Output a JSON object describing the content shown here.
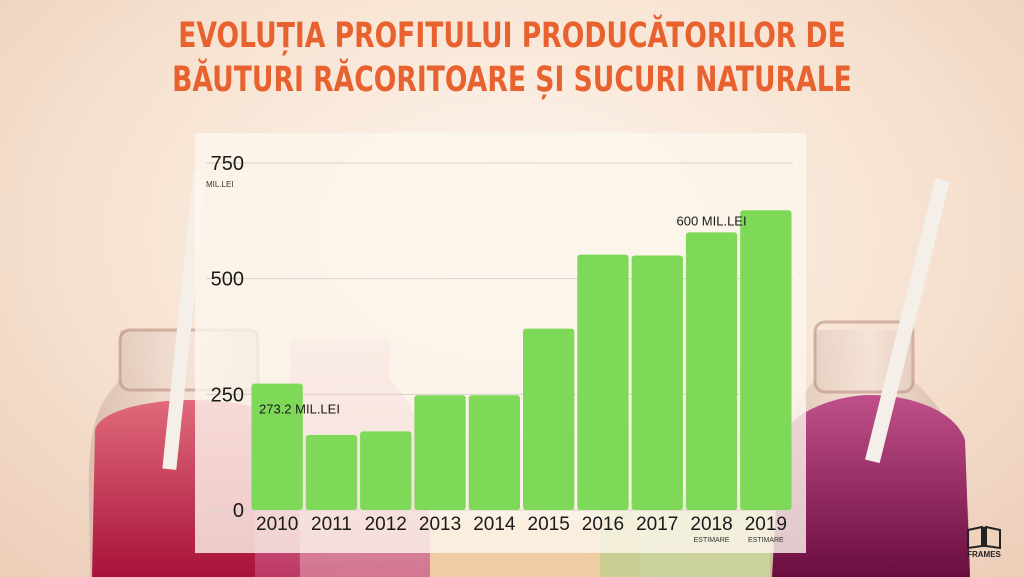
{
  "title_lines": [
    "EVOLUȚIA PROFITULUI PRODUCĂTORILOR DE",
    "BĂUTURI RĂCORITOARE ȘI SUCURI NATURALE"
  ],
  "logo": {
    "text": "FRAMES",
    "icon": "book-icon"
  },
  "colors": {
    "title": "#e8622f",
    "bar": "#7dd957",
    "grid": "#d9d2ca",
    "text": "#1a1a1a"
  },
  "chart_data": {
    "type": "bar",
    "categories": [
      "2010",
      "2011",
      "2012",
      "2013",
      "2014",
      "2015",
      "2016",
      "2017",
      "2018",
      "2019"
    ],
    "category_notes": [
      "",
      "",
      "",
      "",
      "",
      "",
      "",
      "",
      "ESTIMARE",
      "ESTIMARE"
    ],
    "values": [
      273.2,
      162,
      170,
      248,
      248,
      392,
      552,
      550,
      600,
      648
    ],
    "ylim": [
      0,
      750
    ],
    "yticks": [
      0,
      250,
      500,
      750
    ],
    "yunit": "MIL.LEI",
    "grid": true,
    "annotations": [
      {
        "index": 0,
        "text": "273.2 MIL.LEI"
      },
      {
        "index": 8,
        "text": "600 MIL.LEI"
      }
    ]
  }
}
